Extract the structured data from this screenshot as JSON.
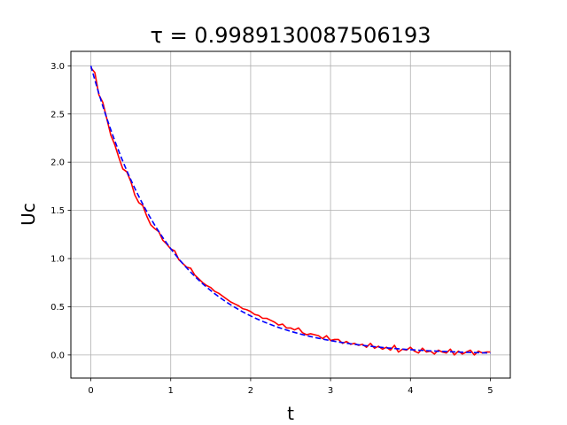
{
  "chart_data": {
    "type": "line",
    "title": "τ = 0.9989130087506193",
    "xlabel": "t",
    "ylabel": "Uc",
    "xlim": [
      -0.25,
      5.25
    ],
    "ylim": [
      -0.24,
      3.15
    ],
    "grid": true,
    "x_ticks": [
      0,
      1,
      2,
      3,
      4,
      5
    ],
    "x_tick_labels": [
      "0",
      "1",
      "2",
      "3",
      "4",
      "5"
    ],
    "y_ticks": [
      0.0,
      0.5,
      1.0,
      1.5,
      2.0,
      2.5,
      3.0
    ],
    "y_tick_labels": [
      "0.0",
      "0.5",
      "1.0",
      "1.5",
      "2.0",
      "2.5",
      "3.0"
    ],
    "series": [
      {
        "style": "solid",
        "color": "#ff0000",
        "x": [
          0.0,
          0.05,
          0.1,
          0.15,
          0.2,
          0.25,
          0.3,
          0.35,
          0.4,
          0.45,
          0.5,
          0.55,
          0.6,
          0.65,
          0.7,
          0.75,
          0.8,
          0.85,
          0.9,
          0.95,
          1.0,
          1.05,
          1.1,
          1.15,
          1.2,
          1.25,
          1.3,
          1.35,
          1.4,
          1.45,
          1.5,
          1.55,
          1.6,
          1.65,
          1.7,
          1.75,
          1.8,
          1.85,
          1.9,
          1.95,
          2.0,
          2.05,
          2.1,
          2.15,
          2.2,
          2.25,
          2.3,
          2.35,
          2.4,
          2.45,
          2.5,
          2.55,
          2.6,
          2.65,
          2.7,
          2.75,
          2.8,
          2.85,
          2.9,
          2.95,
          3.0,
          3.05,
          3.1,
          3.15,
          3.2,
          3.25,
          3.3,
          3.35,
          3.4,
          3.45,
          3.5,
          3.55,
          3.6,
          3.65,
          3.7,
          3.75,
          3.8,
          3.85,
          3.9,
          3.95,
          4.0,
          4.05,
          4.1,
          4.15,
          4.2,
          4.25,
          4.3,
          4.35,
          4.4,
          4.45,
          4.5,
          4.55,
          4.6,
          4.65,
          4.7,
          4.75,
          4.8,
          4.85,
          4.9,
          4.95,
          5.0
        ],
        "y": [
          2.98,
          2.93,
          2.7,
          2.62,
          2.45,
          2.28,
          2.18,
          2.05,
          1.93,
          1.9,
          1.8,
          1.66,
          1.58,
          1.55,
          1.44,
          1.35,
          1.31,
          1.28,
          1.19,
          1.15,
          1.1,
          1.08,
          0.99,
          0.95,
          0.91,
          0.9,
          0.83,
          0.79,
          0.75,
          0.72,
          0.7,
          0.66,
          0.64,
          0.61,
          0.58,
          0.55,
          0.53,
          0.51,
          0.48,
          0.47,
          0.45,
          0.42,
          0.41,
          0.38,
          0.38,
          0.36,
          0.34,
          0.31,
          0.32,
          0.28,
          0.28,
          0.26,
          0.28,
          0.23,
          0.21,
          0.22,
          0.21,
          0.2,
          0.17,
          0.2,
          0.15,
          0.16,
          0.16,
          0.12,
          0.14,
          0.11,
          0.12,
          0.1,
          0.11,
          0.08,
          0.12,
          0.07,
          0.09,
          0.06,
          0.08,
          0.05,
          0.1,
          0.03,
          0.06,
          0.05,
          0.08,
          0.04,
          0.02,
          0.07,
          0.03,
          0.04,
          0.01,
          0.05,
          0.03,
          0.02,
          0.06,
          0.0,
          0.04,
          0.01,
          0.03,
          0.05,
          0.0,
          0.04,
          0.02,
          0.03,
          0.03
        ]
      },
      {
        "style": "dashed",
        "color": "#0000ff",
        "formula": "3*exp(-t/0.9989130087506193)"
      }
    ]
  }
}
